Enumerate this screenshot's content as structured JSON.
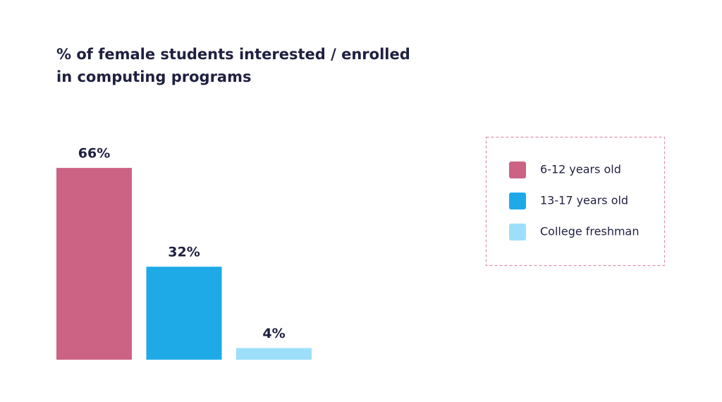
{
  "chart_data": {
    "type": "bar",
    "title": [
      "% of female students interested / enrolled",
      "in computing programs"
    ],
    "series": [
      {
        "name": "6-12 years old",
        "color": "#cc6384",
        "values": [
          66
        ],
        "value_labels": [
          "66%"
        ]
      },
      {
        "name": "13-17 years old",
        "color": "#1eaae7",
        "values": [
          32
        ],
        "value_labels": [
          "32%"
        ]
      },
      {
        "name": "College freshman",
        "color": "#9ddffb",
        "values": [
          4
        ],
        "value_labels": [
          "4%"
        ]
      }
    ],
    "legend": "right"
  }
}
